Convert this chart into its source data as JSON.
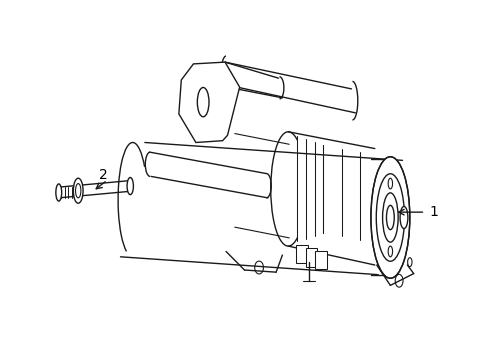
{
  "title": "",
  "background_color": "#ffffff",
  "line_color": "#1a1a1a",
  "label_color": "#000000",
  "label1_text": "1",
  "label2_text": "2",
  "figsize": [
    4.89,
    3.6
  ],
  "dpi": 100
}
